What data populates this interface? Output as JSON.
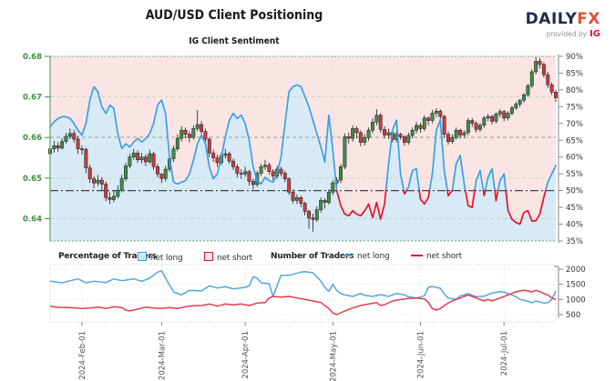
{
  "header": {
    "title": "AUD/USD Client Positioning",
    "subtitle": "IG Client Sentiment"
  },
  "logo": {
    "daily": "DAILY",
    "fx": "FX",
    "provided_by": "provided by",
    "ig": "IG"
  },
  "legend": {
    "pct_header": "Percentage of Traders",
    "num_header": "Number of Traders",
    "net_long": "net long",
    "net_short": "net short"
  },
  "colors": {
    "fill_above_line": "#FBE5E4",
    "fill_below_line": "#D9EAF7",
    "sentiment_long": "#3AA0E8",
    "sentiment_short": "#E8112D",
    "candle_up": "#3E8E4C",
    "candle_down": "#CC3C3C",
    "candle_stroke": "#1a1a1a",
    "grid_price": "#b7d7ae",
    "grid_vertical": "#d9d0d0",
    "price_labels": "#3F8F3F",
    "pct_labels": "#333333",
    "ref_50": "#444444",
    "ref_upper": "#999999",
    "count_long": "#4FA8E0",
    "count_short": "#E23B4B",
    "lower_grid": "#d5d5d5",
    "lower_border": "#c9c9c9",
    "date_labels": "#555555",
    "spine_green": "#66A466",
    "spine_right": "#888888"
  },
  "chart_data": {
    "type": "candlestick+line",
    "title": "AUD/USD Client Positioning",
    "subtitle": "IG Client Sentiment",
    "x_axis": {
      "tick_labels": [
        "2024-Feb-01",
        "2024-Mar-01",
        "2024-Apr-01",
        "2024-May-01",
        "2024-Jun-01",
        "2024-Jul-01"
      ],
      "tick_day_indices": [
        8,
        28,
        49,
        71,
        93,
        114
      ],
      "num_days": 128
    },
    "price_axis": {
      "side": "left",
      "min": 0.6345,
      "max": 0.68,
      "ticks": [
        0.64,
        0.65,
        0.66,
        0.67,
        0.68
      ]
    },
    "pct_axis": {
      "side": "right",
      "min": 35,
      "max": 90,
      "ticks": [
        35,
        40,
        45,
        50,
        55,
        60,
        65,
        70,
        75,
        80,
        85,
        90
      ],
      "tick_suffix": "%",
      "ref_lines": [
        {
          "pct": 50,
          "style": "dashdot"
        },
        {
          "pct": 65.9,
          "style": "dashed"
        }
      ]
    },
    "count_axis": {
      "side": "right",
      "min": 260,
      "max": 2150,
      "ticks": [
        500,
        1000,
        1500,
        2000
      ]
    },
    "pip": 0.0001,
    "candles": [
      [
        6560,
        6585,
        6548,
        6572
      ],
      [
        6572,
        6592,
        6563,
        6580
      ],
      [
        6580,
        6588,
        6565,
        6574
      ],
      [
        6574,
        6598,
        6570,
        6590
      ],
      [
        6590,
        6612,
        6585,
        6603
      ],
      [
        6603,
        6622,
        6596,
        6610
      ],
      [
        6610,
        6618,
        6588,
        6596
      ],
      [
        6596,
        6604,
        6560,
        6572
      ],
      [
        6572,
        6580,
        6558,
        6571
      ],
      [
        6571,
        6575,
        6512,
        6525
      ],
      [
        6525,
        6533,
        6488,
        6498
      ],
      [
        6498,
        6505,
        6475,
        6488
      ],
      [
        6488,
        6508,
        6480,
        6495
      ],
      [
        6495,
        6502,
        6470,
        6485
      ],
      [
        6485,
        6492,
        6443,
        6452
      ],
      [
        6452,
        6465,
        6436,
        6447
      ],
      [
        6447,
        6468,
        6440,
        6455
      ],
      [
        6455,
        6482,
        6450,
        6470
      ],
      [
        6470,
        6508,
        6465,
        6498
      ],
      [
        6498,
        6538,
        6492,
        6530
      ],
      [
        6530,
        6560,
        6524,
        6552
      ],
      [
        6552,
        6572,
        6545,
        6562
      ],
      [
        6562,
        6568,
        6538,
        6545
      ],
      [
        6545,
        6562,
        6536,
        6552
      ],
      [
        6552,
        6558,
        6530,
        6540
      ],
      [
        6540,
        6570,
        6535,
        6560
      ],
      [
        6560,
        6565,
        6520,
        6528
      ],
      [
        6528,
        6535,
        6502,
        6510
      ],
      [
        6510,
        6512,
        6488,
        6499
      ],
      [
        6499,
        6530,
        6492,
        6522
      ],
      [
        6522,
        6556,
        6515,
        6548
      ],
      [
        6548,
        6580,
        6540,
        6572
      ],
      [
        6572,
        6608,
        6566,
        6598
      ],
      [
        6598,
        6628,
        6590,
        6618
      ],
      [
        6618,
        6625,
        6598,
        6608
      ],
      [
        6608,
        6615,
        6588,
        6600
      ],
      [
        6600,
        6630,
        6595,
        6622
      ],
      [
        6622,
        6667,
        6616,
        6632
      ],
      [
        6632,
        6640,
        6608,
        6615
      ],
      [
        6615,
        6622,
        6588,
        6596
      ],
      [
        6596,
        6600,
        6552,
        6562
      ],
      [
        6562,
        6570,
        6540,
        6550
      ],
      [
        6550,
        6558,
        6528,
        6538
      ],
      [
        6538,
        6562,
        6532,
        6556
      ],
      [
        6556,
        6572,
        6548,
        6560
      ],
      [
        6560,
        6565,
        6535,
        6542
      ],
      [
        6542,
        6548,
        6520,
        6528
      ],
      [
        6528,
        6534,
        6502,
        6512
      ],
      [
        6512,
        6522,
        6498,
        6510
      ],
      [
        6510,
        6528,
        6503,
        6516
      ],
      [
        6516,
        6520,
        6482,
        6492
      ],
      [
        6492,
        6498,
        6472,
        6484
      ],
      [
        6484,
        6518,
        6478,
        6512
      ],
      [
        6512,
        6536,
        6505,
        6528
      ],
      [
        6528,
        6545,
        6520,
        6532
      ],
      [
        6532,
        6538,
        6508,
        6516
      ],
      [
        6516,
        6522,
        6495,
        6505
      ],
      [
        6505,
        6530,
        6498,
        6522
      ],
      [
        6522,
        6528,
        6504,
        6512
      ],
      [
        6512,
        6518,
        6490,
        6498
      ],
      [
        6498,
        6502,
        6458,
        6465
      ],
      [
        6465,
        6472,
        6438,
        6445
      ],
      [
        6445,
        6460,
        6436,
        6452
      ],
      [
        6452,
        6456,
        6428,
        6438
      ],
      [
        6438,
        6442,
        6408,
        6418
      ],
      [
        6418,
        6422,
        6375,
        6402
      ],
      [
        6402,
        6412,
        6368,
        6398
      ],
      [
        6398,
        6430,
        6392,
        6422
      ],
      [
        6422,
        6452,
        6415,
        6445
      ],
      [
        6445,
        6450,
        6425,
        6440
      ],
      [
        6440,
        6472,
        6434,
        6465
      ],
      [
        6465,
        6495,
        6458,
        6488
      ],
      [
        6488,
        6502,
        6478,
        6495
      ],
      [
        6495,
        6535,
        6488,
        6528
      ],
      [
        6528,
        6610,
        6522,
        6602
      ],
      [
        6602,
        6612,
        6585,
        6598
      ],
      [
        6598,
        6630,
        6590,
        6622
      ],
      [
        6622,
        6628,
        6598,
        6612
      ],
      [
        6612,
        6618,
        6578,
        6588
      ],
      [
        6588,
        6608,
        6580,
        6600
      ],
      [
        6600,
        6625,
        6592,
        6618
      ],
      [
        6618,
        6648,
        6610,
        6638
      ],
      [
        6638,
        6670,
        6630,
        6655
      ],
      [
        6655,
        6660,
        6612,
        6620
      ],
      [
        6620,
        6628,
        6598,
        6606
      ],
      [
        6606,
        6622,
        6596,
        6612
      ],
      [
        6612,
        6618,
        6588,
        6595
      ],
      [
        6595,
        6615,
        6588,
        6608
      ],
      [
        6608,
        6612,
        6595,
        6602
      ],
      [
        6602,
        6606,
        6580,
        6588
      ],
      [
        6588,
        6612,
        6582,
        6605
      ],
      [
        6605,
        6625,
        6598,
        6618
      ],
      [
        6618,
        6638,
        6610,
        6630
      ],
      [
        6630,
        6636,
        6612,
        6622
      ],
      [
        6622,
        6655,
        6616,
        6648
      ],
      [
        6648,
        6652,
        6630,
        6642
      ],
      [
        6642,
        6668,
        6635,
        6660
      ],
      [
        6660,
        6672,
        6650,
        6665
      ],
      [
        6665,
        6670,
        6645,
        6652
      ],
      [
        6652,
        6656,
        6598,
        6608
      ],
      [
        6608,
        6615,
        6582,
        6590
      ],
      [
        6590,
        6608,
        6585,
        6600
      ],
      [
        6600,
        6625,
        6595,
        6618
      ],
      [
        6618,
        6622,
        6598,
        6606
      ],
      [
        6606,
        6618,
        6598,
        6612
      ],
      [
        6612,
        6648,
        6605,
        6642
      ],
      [
        6642,
        6648,
        6626,
        6635
      ],
      [
        6635,
        6640,
        6612,
        6620
      ],
      [
        6620,
        6636,
        6614,
        6630
      ],
      [
        6630,
        6653,
        6624,
        6648
      ],
      [
        6648,
        6658,
        6640,
        6652
      ],
      [
        6652,
        6656,
        6632,
        6640
      ],
      [
        6640,
        6662,
        6635,
        6658
      ],
      [
        6658,
        6670,
        6650,
        6664
      ],
      [
        6664,
        6668,
        6640,
        6648
      ],
      [
        6648,
        6665,
        6642,
        6660
      ],
      [
        6660,
        6678,
        6654,
        6673
      ],
      [
        6673,
        6688,
        6668,
        6682
      ],
      [
        6682,
        6695,
        6675,
        6692
      ],
      [
        6692,
        6710,
        6686,
        6705
      ],
      [
        6705,
        6732,
        6700,
        6728
      ],
      [
        6728,
        6768,
        6722,
        6762
      ],
      [
        6762,
        6798,
        6756,
        6788
      ],
      [
        6788,
        6796,
        6770,
        6780
      ],
      [
        6780,
        6785,
        6748,
        6755
      ],
      [
        6755,
        6762,
        6722,
        6730
      ],
      [
        6730,
        6736,
        6705,
        6712
      ],
      [
        6712,
        6718,
        6688,
        6698
      ]
    ],
    "net_long_pct": [
      69,
      70.5,
      71.5,
      72,
      72,
      71.5,
      70,
      68,
      66.5,
      70,
      77,
      81,
      79.5,
      75,
      73,
      75.5,
      74.5,
      67,
      62.5,
      64,
      63,
      64.5,
      65.5,
      64.5,
      65.5,
      67,
      70,
      75.5,
      77,
      73,
      60,
      52.5,
      52,
      52.5,
      53,
      55,
      59,
      64,
      66.5,
      64,
      57,
      53.5,
      55,
      60,
      66,
      71,
      73,
      71.5,
      72.5,
      70,
      65,
      57,
      53,
      52,
      54,
      53,
      52.5,
      55,
      60,
      70,
      79.5,
      81,
      81.5,
      81,
      78,
      75,
      71,
      67,
      63,
      58.5,
      72.5,
      62,
      50,
      45.5,
      43,
      42.5,
      44,
      43,
      42.5,
      44,
      46,
      42,
      46.5,
      41.5,
      46,
      58,
      68,
      71,
      55,
      49,
      51,
      56,
      56.5,
      47.5,
      46,
      48,
      55,
      68,
      71,
      56,
      48.5,
      50,
      58,
      60.5,
      52,
      45.5,
      45,
      53,
      56,
      48.5,
      54,
      56.5,
      47,
      53,
      55,
      44,
      41.5,
      40.5,
      40,
      43.5,
      44,
      41,
      41,
      43,
      48,
      52.5,
      55,
      57.5
    ],
    "net_long_count": [
      [
        0,
        1600
      ],
      [
        3,
        1550
      ],
      [
        7,
        1680
      ],
      [
        9,
        1550
      ],
      [
        11,
        1600
      ],
      [
        14,
        1560
      ],
      [
        16,
        1680
      ],
      [
        18,
        1620
      ],
      [
        21,
        1680
      ],
      [
        23,
        1600
      ],
      [
        25,
        1700
      ],
      [
        27,
        1900
      ],
      [
        28,
        1950
      ],
      [
        29,
        1700
      ],
      [
        31,
        1250
      ],
      [
        33,
        1150
      ],
      [
        35,
        1300
      ],
      [
        38,
        1280
      ],
      [
        40,
        1450
      ],
      [
        42,
        1380
      ],
      [
        44,
        1420
      ],
      [
        46,
        1350
      ],
      [
        49,
        1400
      ],
      [
        50,
        1450
      ],
      [
        51,
        1750
      ],
      [
        52,
        1700
      ],
      [
        53,
        1550
      ],
      [
        55,
        1520
      ],
      [
        56,
        1100
      ],
      [
        57,
        1450
      ],
      [
        58,
        1800
      ],
      [
        60,
        1800
      ],
      [
        61,
        1830
      ],
      [
        63,
        1900
      ],
      [
        64,
        1920
      ],
      [
        66,
        1880
      ],
      [
        67,
        1750
      ],
      [
        68,
        1600
      ],
      [
        69,
        1400
      ],
      [
        70,
        1270
      ],
      [
        71,
        1500
      ],
      [
        72,
        1300
      ],
      [
        73,
        1200
      ],
      [
        74,
        1150
      ],
      [
        76,
        1100
      ],
      [
        78,
        1200
      ],
      [
        79,
        1140
      ],
      [
        81,
        1100
      ],
      [
        83,
        1160
      ],
      [
        85,
        1100
      ],
      [
        87,
        1200
      ],
      [
        89,
        1150
      ],
      [
        90,
        1090
      ],
      [
        92,
        1050
      ],
      [
        94,
        1120
      ],
      [
        95,
        1400
      ],
      [
        96,
        1430
      ],
      [
        98,
        1370
      ],
      [
        99,
        1180
      ],
      [
        100,
        1050
      ],
      [
        102,
        1000
      ],
      [
        103,
        1120
      ],
      [
        105,
        1190
      ],
      [
        106,
        1140
      ],
      [
        107,
        1090
      ],
      [
        109,
        1110
      ],
      [
        110,
        1160
      ],
      [
        111,
        1210
      ],
      [
        113,
        1260
      ],
      [
        114,
        1240
      ],
      [
        116,
        1150
      ],
      [
        117,
        1090
      ],
      [
        118,
        1000
      ],
      [
        120,
        940
      ],
      [
        121,
        890
      ],
      [
        122,
        950
      ],
      [
        124,
        880
      ],
      [
        125,
        900
      ],
      [
        126,
        1000
      ],
      [
        127,
        1280
      ]
    ],
    "net_short_count": [
      [
        0,
        780
      ],
      [
        2,
        740
      ],
      [
        5,
        730
      ],
      [
        8,
        700
      ],
      [
        10,
        720
      ],
      [
        12,
        745
      ],
      [
        14,
        700
      ],
      [
        16,
        760
      ],
      [
        18,
        730
      ],
      [
        19,
        650
      ],
      [
        20,
        620
      ],
      [
        22,
        680
      ],
      [
        24,
        750
      ],
      [
        26,
        720
      ],
      [
        28,
        700
      ],
      [
        30,
        730
      ],
      [
        32,
        700
      ],
      [
        34,
        760
      ],
      [
        36,
        790
      ],
      [
        38,
        800
      ],
      [
        40,
        850
      ],
      [
        42,
        780
      ],
      [
        44,
        850
      ],
      [
        46,
        820
      ],
      [
        48,
        850
      ],
      [
        50,
        800
      ],
      [
        52,
        880
      ],
      [
        54,
        900
      ],
      [
        55,
        1050
      ],
      [
        56,
        1100
      ],
      [
        58,
        1080
      ],
      [
        60,
        1100
      ],
      [
        62,
        1050
      ],
      [
        64,
        1000
      ],
      [
        66,
        950
      ],
      [
        68,
        900
      ],
      [
        70,
        700
      ],
      [
        71,
        550
      ],
      [
        72,
        500
      ],
      [
        74,
        620
      ],
      [
        76,
        720
      ],
      [
        78,
        800
      ],
      [
        80,
        850
      ],
      [
        82,
        900
      ],
      [
        83,
        800
      ],
      [
        84,
        830
      ],
      [
        86,
        950
      ],
      [
        88,
        1000
      ],
      [
        90,
        1030
      ],
      [
        92,
        1050
      ],
      [
        94,
        1020
      ],
      [
        95,
        900
      ],
      [
        96,
        700
      ],
      [
        97,
        650
      ],
      [
        98,
        700
      ],
      [
        99,
        800
      ],
      [
        100,
        880
      ],
      [
        101,
        950
      ],
      [
        102,
        1000
      ],
      [
        103,
        1050
      ],
      [
        104,
        1100
      ],
      [
        105,
        1150
      ],
      [
        106,
        1100
      ],
      [
        107,
        1050
      ],
      [
        108,
        1000
      ],
      [
        109,
        950
      ],
      [
        110,
        1000
      ],
      [
        111,
        950
      ],
      [
        112,
        1000
      ],
      [
        113,
        1050
      ],
      [
        114,
        1100
      ],
      [
        115,
        1150
      ],
      [
        116,
        1200
      ],
      [
        117,
        1250
      ],
      [
        118,
        1280
      ],
      [
        119,
        1300
      ],
      [
        120,
        1280
      ],
      [
        121,
        1250
      ],
      [
        122,
        1300
      ],
      [
        123,
        1260
      ],
      [
        124,
        1200
      ],
      [
        125,
        1150
      ],
      [
        126,
        1050
      ],
      [
        127,
        1000
      ]
    ]
  }
}
